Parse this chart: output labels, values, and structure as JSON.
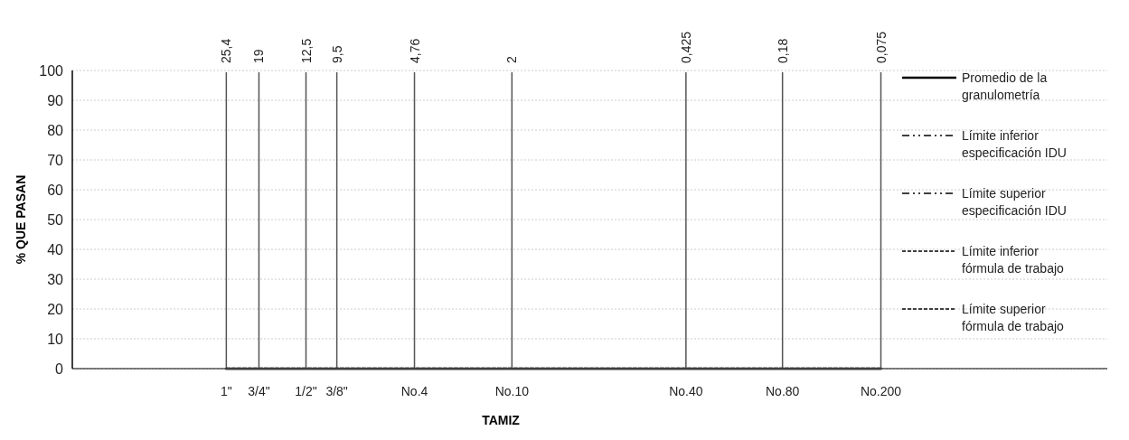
{
  "chart_data": {
    "type": "line",
    "xlabel": "TAMIZ",
    "ylabel": "% QUE PASAN",
    "log": "x2",
    "x2lim": [
      100,
      0.01
    ],
    "ylim": [
      0,
      100
    ],
    "yticks": [
      0,
      10,
      20,
      30,
      40,
      50,
      60,
      70,
      80,
      90,
      100
    ],
    "x2ticks": [
      {
        "value": 25.4,
        "label": "25,4"
      },
      {
        "value": 19,
        "label": "19"
      },
      {
        "value": 12.5,
        "label": "12,5"
      },
      {
        "value": 9.5,
        "label": "9,5"
      },
      {
        "value": 4.76,
        "label": "4,76"
      },
      {
        "value": 2,
        "label": "2"
      },
      {
        "value": 0.425,
        "label": "0,425"
      },
      {
        "value": 0.18,
        "label": "0,18"
      },
      {
        "value": 0.075,
        "label": "0,075"
      }
    ],
    "categories": [
      "1\"",
      "3/4\"",
      "1/2\"",
      "3/8\"",
      "No.4",
      "No.10",
      "No.40",
      "No.80",
      "No.200"
    ],
    "series": [
      {
        "name": "Promedio de la granulometría",
        "color": "#000000",
        "line_style": "solid",
        "values": [
          null,
          null,
          null,
          null,
          null,
          null,
          null,
          null,
          null
        ]
      },
      {
        "name": "Límite inferior especificación IDU",
        "color": "#404040",
        "line_style": "dashdot",
        "values": [
          null,
          null,
          null,
          null,
          null,
          null,
          null,
          null,
          null
        ]
      },
      {
        "name": "Límite superior especificación IDU",
        "color": "#404040",
        "line_style": "dashdot",
        "values": [
          null,
          null,
          null,
          null,
          null,
          null,
          null,
          null,
          null
        ]
      },
      {
        "name": "Límite inferior fórmula de trabajo",
        "color": "#404040",
        "line_style": "dashed",
        "values": [
          null,
          null,
          null,
          null,
          null,
          null,
          null,
          null,
          null
        ]
      },
      {
        "name": "Límite superior fórmula de trabajo",
        "color": "#404040",
        "line_style": "dashed",
        "values": [
          0,
          0,
          0,
          0,
          0,
          0,
          0,
          0,
          0
        ]
      }
    ],
    "grid": true,
    "legend": "right"
  }
}
